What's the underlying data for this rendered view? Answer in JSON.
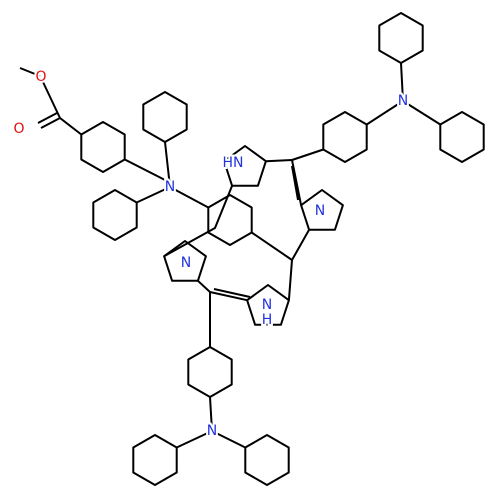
{
  "atoms": [
    "O",
    "O",
    "N",
    "HN",
    "N",
    "N",
    "N",
    "H",
    "N",
    "N"
  ]
}
